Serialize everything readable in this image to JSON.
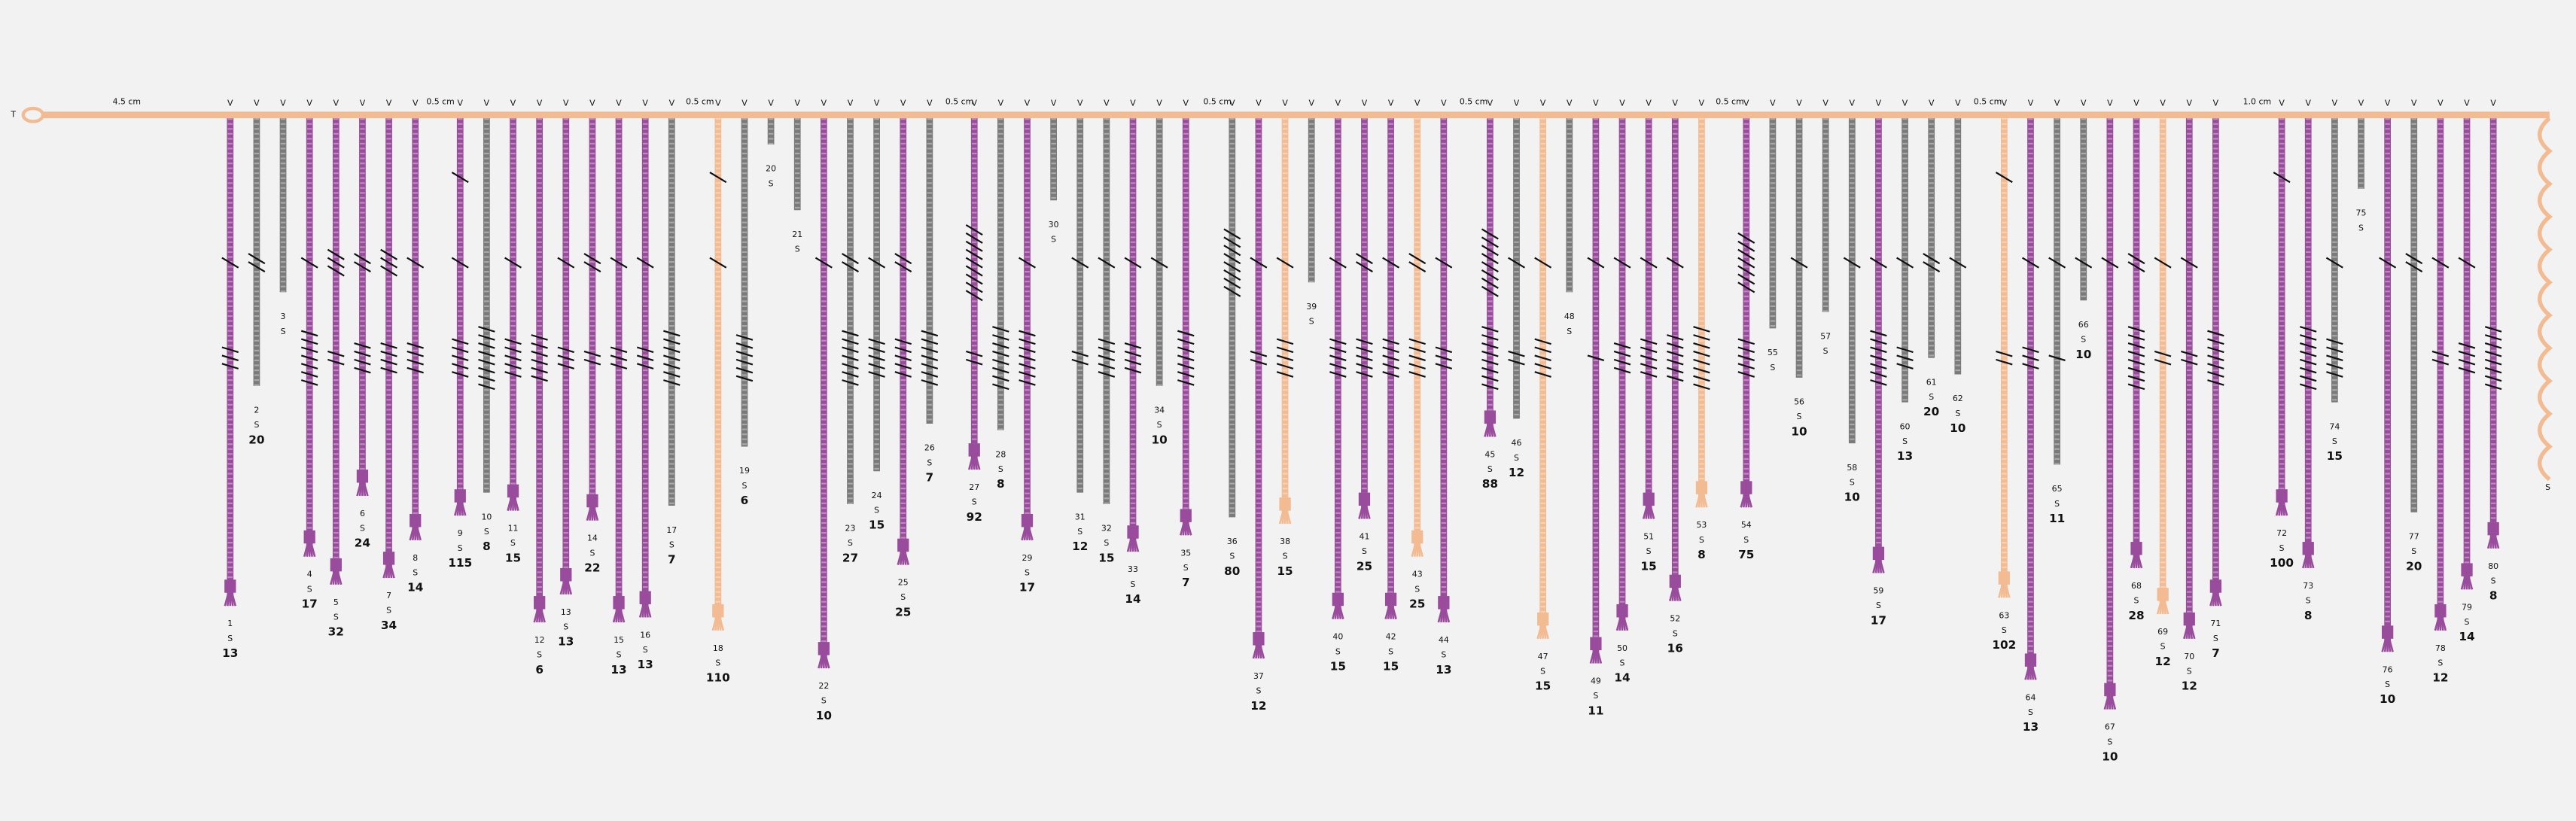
{
  "start_label": "T",
  "groups": [
    {
      "spacing": "4.5 cm",
      "cords": [
        {
          "id": 1,
          "attach": "V",
          "ply": "S",
          "value": 13,
          "color": "#9a4c9c"
        },
        {
          "id": 2,
          "attach": "V",
          "ply": "S",
          "value": 20,
          "color": "#7a7a7a"
        },
        {
          "id": 3,
          "attach": "V",
          "ply": "S",
          "color": "#7a7a7a"
        },
        {
          "id": 4,
          "attach": "V",
          "ply": "S",
          "value": 17,
          "color": "#9a4c9c"
        },
        {
          "id": 5,
          "attach": "V",
          "ply": "S",
          "value": 32,
          "color": "#9a4c9c"
        },
        {
          "id": 6,
          "attach": "V",
          "ply": "S",
          "value": 24,
          "color": "#9a4c9c"
        },
        {
          "id": 7,
          "attach": "V",
          "ply": "S",
          "value": 34,
          "color": "#9a4c9c"
        },
        {
          "id": 8,
          "attach": "V",
          "ply": "S",
          "value": 14,
          "color": "#9a4c9c"
        }
      ]
    },
    {
      "spacing": "0.5 cm",
      "cords": [
        {
          "id": 9,
          "attach": "V",
          "ply": "S",
          "value": 115,
          "color": "#9a4c9c"
        },
        {
          "id": 10,
          "attach": "V",
          "ply": "S",
          "value": 8,
          "color": "#7a7a7a"
        },
        {
          "id": 11,
          "attach": "V",
          "ply": "S",
          "value": 15,
          "color": "#9a4c9c"
        },
        {
          "id": 12,
          "attach": "V",
          "ply": "S",
          "value": 6,
          "color": "#9a4c9c"
        },
        {
          "id": 13,
          "attach": "V",
          "ply": "S",
          "value": 13,
          "color": "#9a4c9c"
        },
        {
          "id": 14,
          "attach": "V",
          "ply": "S",
          "value": 22,
          "color": "#9a4c9c"
        },
        {
          "id": 15,
          "attach": "V",
          "ply": "S",
          "value": 13,
          "color": "#9a4c9c"
        },
        {
          "id": 16,
          "attach": "V",
          "ply": "S",
          "value": 13,
          "color": "#9a4c9c"
        },
        {
          "id": 17,
          "attach": "V",
          "ply": "S",
          "value": 7,
          "color": "#7a7a7a"
        }
      ]
    },
    {
      "spacing": "0.5 cm",
      "cords": [
        {
          "id": 18,
          "attach": "V",
          "ply": "S",
          "value": 110,
          "color": "#f3bb92"
        },
        {
          "id": 19,
          "attach": "V",
          "ply": "S",
          "value": 6,
          "color": "#7a7a7a"
        },
        {
          "id": 20,
          "attach": "V",
          "ply": "S",
          "color": "#7a7a7a"
        },
        {
          "id": 21,
          "attach": "V",
          "ply": "S",
          "color": "#7a7a7a"
        },
        {
          "id": 22,
          "attach": "V",
          "ply": "S",
          "value": 10,
          "color": "#9a4c9c"
        },
        {
          "id": 23,
          "attach": "V",
          "ply": "S",
          "value": 27,
          "color": "#7a7a7a"
        },
        {
          "id": 24,
          "attach": "V",
          "ply": "S",
          "value": 15,
          "color": "#7a7a7a"
        },
        {
          "id": 25,
          "attach": "V",
          "ply": "S",
          "value": 25,
          "color": "#9a4c9c"
        },
        {
          "id": 26,
          "attach": "V",
          "ply": "S",
          "value": 7,
          "color": "#7a7a7a"
        }
      ]
    },
    {
      "spacing": "0.5 cm",
      "cords": [
        {
          "id": 27,
          "attach": "V",
          "ply": "S",
          "value": 92,
          "color": "#9a4c9c"
        },
        {
          "id": 28,
          "attach": "V",
          "ply": "S",
          "value": 8,
          "color": "#7a7a7a"
        },
        {
          "id": 29,
          "attach": "V",
          "ply": "S",
          "value": 17,
          "color": "#9a4c9c"
        },
        {
          "id": 30,
          "attach": "V",
          "ply": "S",
          "color": "#7a7a7a"
        },
        {
          "id": 31,
          "attach": "V",
          "ply": "S",
          "value": 12,
          "color": "#7a7a7a"
        },
        {
          "id": 32,
          "attach": "V",
          "ply": "S",
          "value": 15,
          "color": "#7a7a7a"
        },
        {
          "id": 33,
          "attach": "V",
          "ply": "S",
          "value": 14,
          "color": "#9a4c9c"
        },
        {
          "id": 34,
          "attach": "V",
          "ply": "S",
          "value": 10,
          "color": "#7a7a7a"
        },
        {
          "id": 35,
          "attach": "V",
          "ply": "S",
          "value": 7,
          "color": "#9a4c9c"
        }
      ]
    },
    {
      "spacing": "0.5 cm",
      "cords": [
        {
          "id": 36,
          "attach": "V",
          "ply": "S",
          "value": 80,
          "color": "#7a7a7a"
        },
        {
          "id": 37,
          "attach": "V",
          "ply": "S",
          "value": 12,
          "color": "#9a4c9c"
        },
        {
          "id": 38,
          "attach": "V",
          "ply": "S",
          "value": 15,
          "color": "#f3bb92"
        },
        {
          "id": 39,
          "attach": "V",
          "ply": "S",
          "color": "#7a7a7a"
        },
        {
          "id": 40,
          "attach": "V",
          "ply": "S",
          "value": 15,
          "color": "#9a4c9c"
        },
        {
          "id": 41,
          "attach": "V",
          "ply": "S",
          "value": 25,
          "color": "#9a4c9c"
        },
        {
          "id": 42,
          "attach": "V",
          "ply": "S",
          "value": 15,
          "color": "#9a4c9c"
        },
        {
          "id": 43,
          "attach": "V",
          "ply": "S",
          "value": 25,
          "color": "#f3bb92"
        },
        {
          "id": 44,
          "attach": "V",
          "ply": "S",
          "value": 13,
          "color": "#9a4c9c"
        }
      ]
    },
    {
      "spacing": "0.5 cm",
      "cords": [
        {
          "id": 45,
          "attach": "V",
          "ply": "S",
          "value": 88,
          "color": "#9a4c9c"
        },
        {
          "id": 46,
          "attach": "V",
          "ply": "S",
          "value": 12,
          "color": "#7a7a7a"
        },
        {
          "id": 47,
          "attach": "V",
          "ply": "S",
          "value": 15,
          "color": "#f3bb92"
        },
        {
          "id": 48,
          "attach": "V",
          "ply": "S",
          "color": "#7a7a7a"
        },
        {
          "id": 49,
          "attach": "V",
          "ply": "S",
          "value": 11,
          "color": "#9a4c9c"
        },
        {
          "id": 50,
          "attach": "V",
          "ply": "S",
          "value": 14,
          "color": "#9a4c9c"
        },
        {
          "id": 51,
          "attach": "V",
          "ply": "S",
          "value": 15,
          "color": "#9a4c9c"
        },
        {
          "id": 52,
          "attach": "V",
          "ply": "S",
          "value": 16,
          "color": "#9a4c9c"
        },
        {
          "id": 53,
          "attach": "V",
          "ply": "S",
          "value": 8,
          "color": "#f3bb92"
        }
      ]
    },
    {
      "spacing": "0.5 cm",
      "cords": [
        {
          "id": 54,
          "attach": "V",
          "ply": "S",
          "value": 75,
          "color": "#9a4c9c"
        },
        {
          "id": 55,
          "attach": "V",
          "ply": "S",
          "color": "#7a7a7a"
        },
        {
          "id": 56,
          "attach": "V",
          "ply": "S",
          "value": 10,
          "color": "#7a7a7a"
        },
        {
          "id": 57,
          "attach": "V",
          "ply": "S",
          "color": "#7a7a7a"
        },
        {
          "id": 58,
          "attach": "V",
          "ply": "S",
          "value": 10,
          "color": "#7a7a7a"
        },
        {
          "id": 59,
          "attach": "V",
          "ply": "S",
          "value": 17,
          "color": "#9a4c9c"
        },
        {
          "id": 60,
          "attach": "V",
          "ply": "S",
          "value": 13,
          "color": "#7a7a7a"
        },
        {
          "id": 61,
          "attach": "V",
          "ply": "S",
          "value": 20,
          "color": "#7a7a7a"
        },
        {
          "id": 62,
          "attach": "V",
          "ply": "S",
          "value": 10,
          "color": "#7a7a7a"
        }
      ]
    },
    {
      "spacing": "0.5 cm",
      "cords": [
        {
          "id": 63,
          "attach": "V",
          "ply": "S",
          "value": 102,
          "color": "#f3bb92"
        },
        {
          "id": 64,
          "attach": "V",
          "ply": "S",
          "value": 13,
          "color": "#9a4c9c"
        },
        {
          "id": 65,
          "attach": "V",
          "ply": "S",
          "value": 11,
          "color": "#7a7a7a"
        },
        {
          "id": 66,
          "attach": "V",
          "ply": "S",
          "value": 10,
          "color": "#7a7a7a"
        },
        {
          "id": 67,
          "attach": "V",
          "ply": "S",
          "value": 10,
          "color": "#9a4c9c"
        },
        {
          "id": 68,
          "attach": "V",
          "ply": "S",
          "value": 28,
          "color": "#9a4c9c"
        },
        {
          "id": 69,
          "attach": "V",
          "ply": "S",
          "value": 12,
          "color": "#f3bb92"
        },
        {
          "id": 70,
          "attach": "V",
          "ply": "S",
          "value": 12,
          "color": "#9a4c9c"
        },
        {
          "id": 71,
          "attach": "V",
          "ply": "S",
          "value": 7,
          "color": "#9a4c9c"
        }
      ]
    },
    {
      "spacing": "1.0 cm",
      "cords": [
        {
          "id": 72,
          "attach": "V",
          "ply": "S",
          "value": 100,
          "color": "#9a4c9c"
        },
        {
          "id": 73,
          "attach": "V",
          "ply": "S",
          "value": 8,
          "color": "#9a4c9c"
        },
        {
          "id": 74,
          "attach": "V",
          "ply": "S",
          "value": 15,
          "color": "#7a7a7a"
        },
        {
          "id": 75,
          "attach": "V",
          "ply": "S",
          "color": "#7a7a7a"
        },
        {
          "id": 76,
          "attach": "V",
          "ply": "S",
          "value": 10,
          "color": "#9a4c9c"
        },
        {
          "id": 77,
          "attach": "V",
          "ply": "S",
          "value": 20,
          "color": "#7a7a7a"
        },
        {
          "id": 78,
          "attach": "V",
          "ply": "S",
          "value": 12,
          "color": "#9a4c9c"
        },
        {
          "id": 79,
          "attach": "V",
          "ply": "S",
          "value": 14,
          "color": "#9a4c9c"
        },
        {
          "id": 80,
          "attach": "V",
          "ply": "S",
          "value": 8,
          "color": "#9a4c9c"
        }
      ]
    }
  ],
  "end_cord": {
    "ply": "S",
    "color": "#f3bb92"
  },
  "main_cord_color": "#f3bb92"
}
